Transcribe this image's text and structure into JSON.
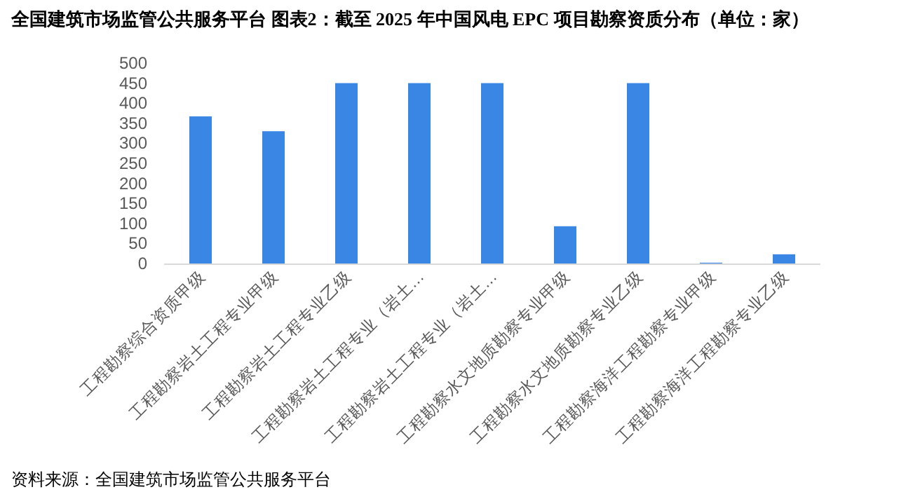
{
  "chart_data": {
    "type": "bar",
    "title": "全国建筑市场监管公共服务平台  图表2：截至 2025 年中国风电 EPC 项目勘察资质分布（单位：家）",
    "categories": [
      "工程勘察综合资质甲级",
      "工程勘察岩土工程专业甲级",
      "工程勘察岩土工程专业乙级",
      "工程勘察岩土工程专业（岩土…",
      "工程勘察岩土工程专业（岩土…",
      "工程勘察水文地质勘察专业甲级",
      "工程勘察水文地质勘察专业乙级",
      "工程勘察海洋工程勘察专业甲级",
      "工程勘察海洋工程勘察专业乙级"
    ],
    "values": [
      367,
      330,
      450,
      450,
      450,
      93,
      450,
      2,
      23
    ],
    "color": "#3a86e5",
    "ylim": [
      0,
      500
    ],
    "yticks": [
      0,
      50,
      100,
      150,
      200,
      250,
      300,
      350,
      400,
      450,
      500
    ],
    "grid": false,
    "annotations": [
      "资料来源：全国建筑市场监管公共服务平台"
    ]
  }
}
